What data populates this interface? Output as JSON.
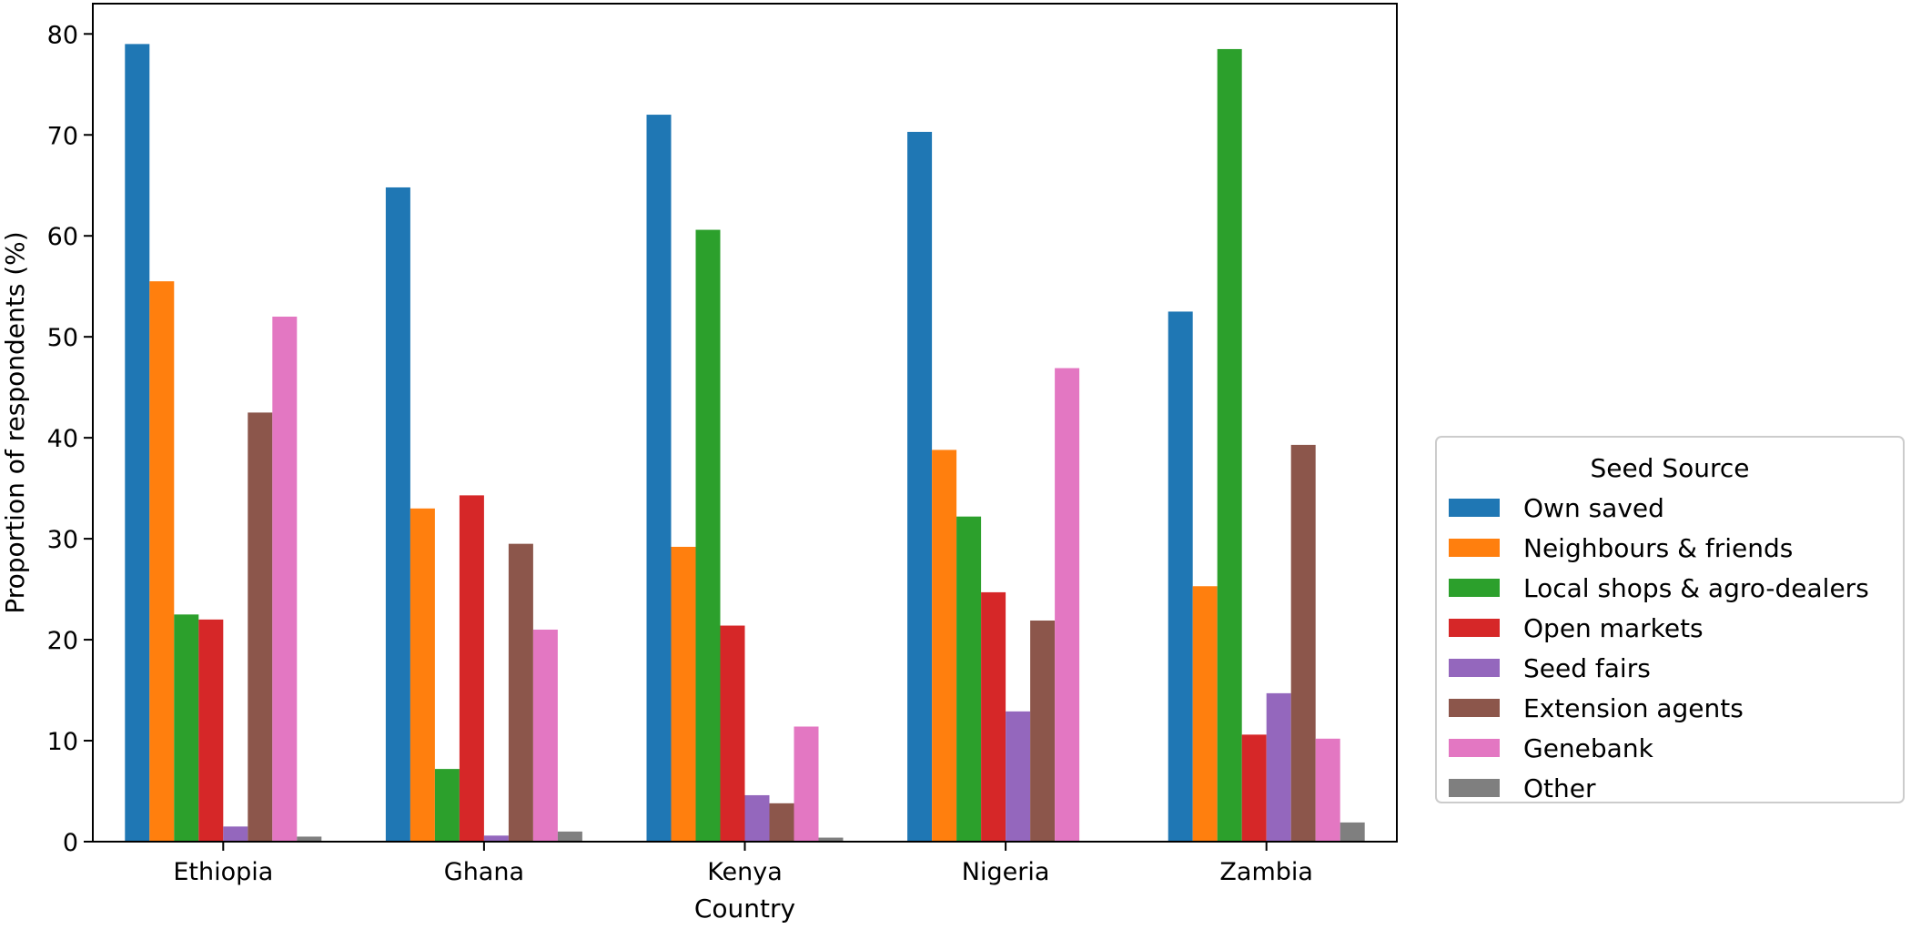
{
  "chart_data": {
    "type": "bar",
    "title": "",
    "xlabel": "Country",
    "ylabel": "Proportion of respondents (%)",
    "ylim": [
      0,
      83
    ],
    "yticks": [
      0,
      10,
      20,
      30,
      40,
      50,
      60,
      70,
      80
    ],
    "ytick_labels": [
      "0",
      "10",
      "20",
      "30",
      "40",
      "50",
      "60",
      "70",
      "80"
    ],
    "grid": false,
    "categories": [
      "Ethiopia",
      "Ghana",
      "Kenya",
      "Nigeria",
      "Zambia"
    ],
    "legend": {
      "title": "Seed Source",
      "placement": "right"
    },
    "series": [
      {
        "name": "Own saved",
        "color": "#1f77b4",
        "values": [
          79.0,
          64.8,
          72.0,
          70.3,
          52.5
        ]
      },
      {
        "name": "Neighbours & friends",
        "color": "#ff7f0e",
        "values": [
          55.5,
          33.0,
          29.2,
          38.8,
          25.3
        ]
      },
      {
        "name": "Local shops & agro-dealers",
        "color": "#2ca02c",
        "values": [
          22.5,
          7.2,
          60.6,
          32.2,
          78.5
        ]
      },
      {
        "name": "Open markets",
        "color": "#d62728",
        "values": [
          22.0,
          34.3,
          21.4,
          24.7,
          10.6
        ]
      },
      {
        "name": "Seed fairs",
        "color": "#9467bd",
        "values": [
          1.5,
          0.6,
          4.6,
          12.9,
          14.7
        ]
      },
      {
        "name": "Extension agents",
        "color": "#8c564b",
        "values": [
          42.5,
          29.5,
          3.8,
          21.9,
          39.3
        ]
      },
      {
        "name": "Genebank",
        "color": "#e377c2",
        "values": [
          52.0,
          21.0,
          11.4,
          46.9,
          10.2
        ]
      },
      {
        "name": "Other",
        "color": "#7f7f7f",
        "values": [
          0.5,
          1.0,
          0.4,
          0.0,
          1.9
        ]
      }
    ]
  }
}
